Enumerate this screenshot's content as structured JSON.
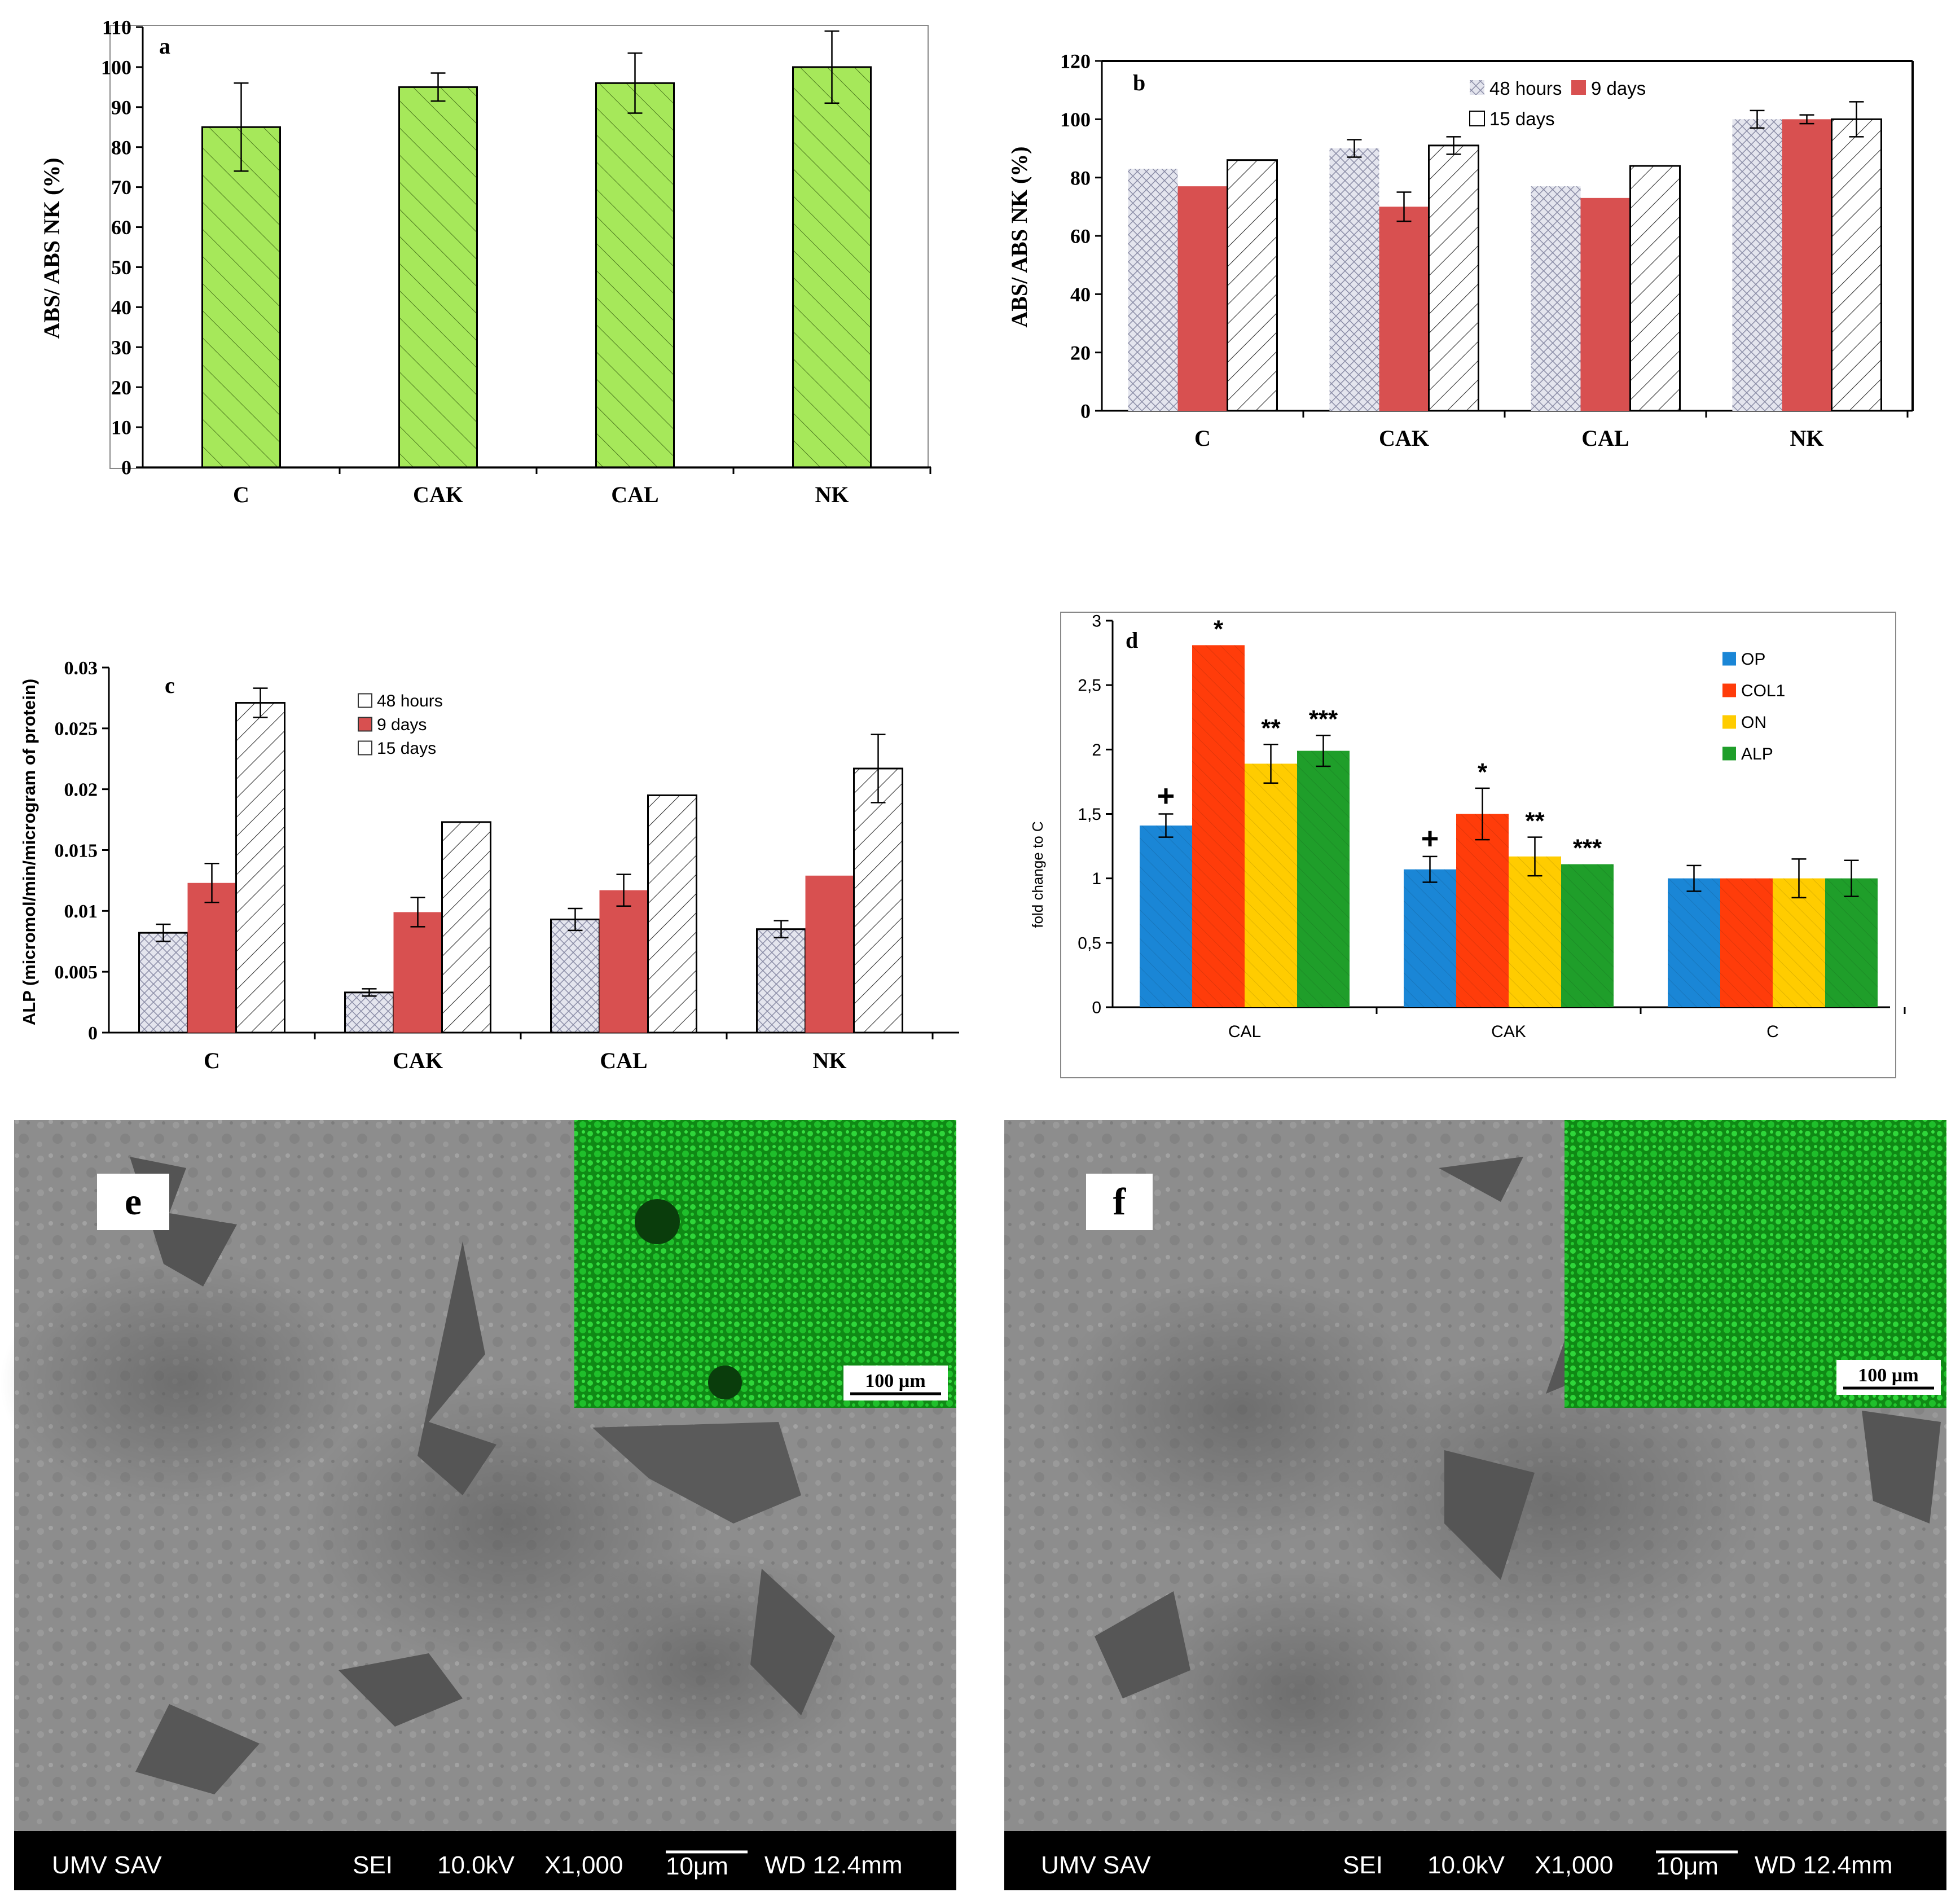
{
  "chart_data": [
    {
      "panel": "a",
      "type": "bar",
      "title": "",
      "ylabel": "ABS/ ABS  NK (%)",
      "xlabel": "",
      "categories": [
        "C",
        "CAK",
        "CAL",
        "NK"
      ],
      "ylim": [
        0,
        110
      ],
      "yticks": [
        0,
        10,
        20,
        30,
        40,
        50,
        60,
        70,
        80,
        90,
        100,
        110
      ],
      "series": [
        {
          "values": [
            85,
            95,
            96,
            100
          ],
          "errors": [
            11,
            3.5,
            7.5,
            9
          ],
          "color": "#a6e85a"
        }
      ],
      "grid": false
    },
    {
      "panel": "b",
      "type": "bar",
      "title": "",
      "ylabel": "ABS/ ABS  NK (%)",
      "xlabel": "",
      "categories": [
        "C",
        "CAK",
        "CAL",
        "NK"
      ],
      "ylim": [
        0,
        120
      ],
      "yticks": [
        0,
        20,
        40,
        60,
        80,
        100,
        120
      ],
      "series": [
        {
          "name": "48 hours",
          "values": [
            83,
            90,
            77,
            100
          ],
          "errors": [
            0,
            3,
            0,
            3
          ],
          "color": "#c9cbd8"
        },
        {
          "name": "9 days",
          "values": [
            77,
            70,
            73,
            100
          ],
          "errors": [
            0,
            5,
            0,
            1.5
          ],
          "color": "#d85050"
        },
        {
          "name": "15 days",
          "values": [
            86,
            91,
            84,
            100
          ],
          "errors": [
            0,
            3,
            0,
            6
          ],
          "color": "#ffffff"
        }
      ],
      "legend_position": "top-center",
      "grid": false
    },
    {
      "panel": "c",
      "type": "bar",
      "title": "",
      "ylabel": "ALP (micromol/min/microgram of protein)",
      "xlabel": "",
      "categories": [
        "C",
        "CAK",
        "CAL",
        "NK"
      ],
      "ylim": [
        0,
        0.03
      ],
      "yticks": [
        "0",
        "0.005",
        "0.01",
        "0.015",
        "0.02",
        "0.025",
        "0.03"
      ],
      "series": [
        {
          "name": "48 hours",
          "values": [
            0.0082,
            0.0033,
            0.0093,
            0.0085
          ],
          "errors": [
            0.0007,
            0.0003,
            0.0009,
            0.0007
          ],
          "color": "#c9cbd8"
        },
        {
          "name": "9 days",
          "values": [
            0.0123,
            0.0099,
            0.0117,
            0.0129
          ],
          "errors": [
            0.0016,
            0.0012,
            0.0013,
            0
          ],
          "color": "#d85050"
        },
        {
          "name": "15 days",
          "values": [
            0.0271,
            0.0173,
            0.0195,
            0.0217
          ],
          "errors": [
            0.0012,
            0,
            0,
            0.0028
          ],
          "color": "#ffffff"
        }
      ],
      "legend_position": "top-center",
      "grid": false
    },
    {
      "panel": "d",
      "type": "bar",
      "title": "",
      "ylabel": "fold change to C",
      "xlabel": "",
      "categories": [
        "CAL",
        "CAK",
        "C"
      ],
      "ylim": [
        0,
        3
      ],
      "yticks": [
        "0",
        "0,5",
        "1",
        "1,5",
        "2",
        "2,5",
        "3"
      ],
      "series": [
        {
          "name": "OP",
          "values": [
            1.41,
            1.07,
            1.0
          ],
          "errors": [
            0.09,
            0.1,
            0.1
          ],
          "color": "#1a86d6",
          "markers": [
            "+",
            "+",
            ""
          ]
        },
        {
          "name": "COL1",
          "values": [
            2.81,
            1.5,
            1.0
          ],
          "errors": [
            0,
            0.2,
            0
          ],
          "color": "#ff3c0a",
          "markers": [
            "*",
            "*",
            ""
          ]
        },
        {
          "name": "ON",
          "values": [
            1.89,
            1.17,
            1.0
          ],
          "errors": [
            0.15,
            0.15,
            0.15
          ],
          "color": "#ffcc00",
          "markers": [
            "**",
            "**",
            ""
          ]
        },
        {
          "name": "ALP",
          "values": [
            1.99,
            1.11,
            1.0
          ],
          "errors": [
            0.12,
            0,
            0.14
          ],
          "color": "#1f9e2a",
          "markers": [
            "***",
            "***",
            ""
          ]
        }
      ],
      "legend_position": "top-right",
      "grid": false
    }
  ],
  "images": {
    "e": {
      "label": "e",
      "inset_scale": "100 µm",
      "footer": {
        "lab": "UMV SAV",
        "mode": "SEI",
        "kv": "10.0kV",
        "mag": "X1,000",
        "scale": "10μm",
        "wd": "WD 12.4mm"
      }
    },
    "f": {
      "label": "f",
      "inset_scale": "100 µm",
      "footer": {
        "lab": "UMV SAV",
        "mode": "SEI",
        "kv": "10.0kV",
        "mag": "X1,000",
        "scale": "10μm",
        "wd": "WD 12.4mm"
      }
    }
  }
}
